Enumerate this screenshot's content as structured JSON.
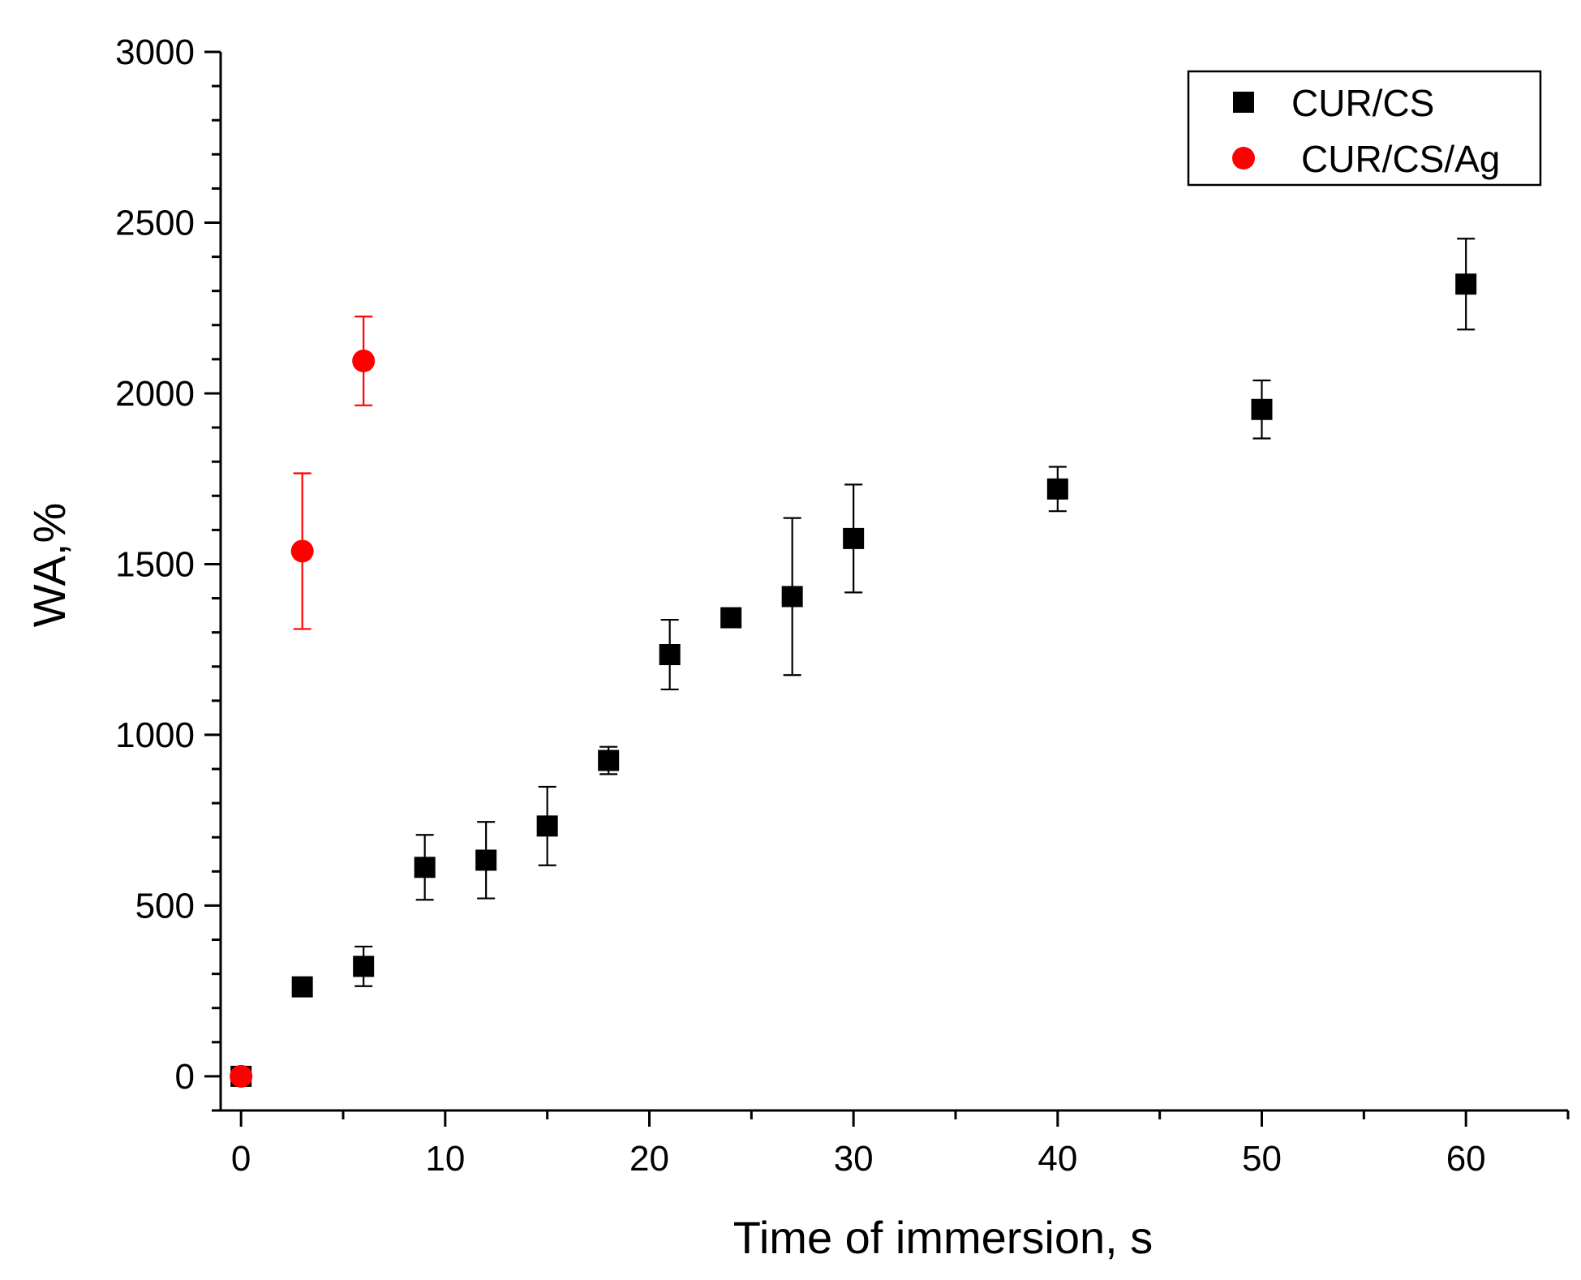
{
  "chart_data": {
    "type": "scatter",
    "xlabel": "Time of immersion, s",
    "ylabel": "WA,%",
    "xlim": [
      -1,
      65
    ],
    "ylim": [
      -100,
      3000
    ],
    "x_ticks": [
      0,
      10,
      20,
      30,
      40,
      50,
      60
    ],
    "x_tick_labels": [
      "0",
      "10",
      "20",
      "30",
      "40",
      "50",
      "60"
    ],
    "y_ticks": [
      0,
      500,
      1000,
      1500,
      2000,
      2500,
      3000
    ],
    "y_tick_labels": [
      "0",
      "500",
      "1000",
      "1500",
      "2000",
      "2500",
      "3000"
    ],
    "grid": false,
    "legend_position": "top-right",
    "series": [
      {
        "name": "CUR/CS",
        "marker": "square",
        "color": "#000000",
        "points": [
          {
            "x": 0,
            "y": 0,
            "err": 20
          },
          {
            "x": 3,
            "y": 262,
            "err": 15
          },
          {
            "x": 6,
            "y": 322,
            "err": 58
          },
          {
            "x": 9,
            "y": 612,
            "err": 95
          },
          {
            "x": 12,
            "y": 633,
            "err": 112
          },
          {
            "x": 15,
            "y": 733,
            "err": 115
          },
          {
            "x": 18,
            "y": 925,
            "err": 40
          },
          {
            "x": 21,
            "y": 1235,
            "err": 102
          },
          {
            "x": 24,
            "y": 1343,
            "err": 10
          },
          {
            "x": 27,
            "y": 1405,
            "err": 230
          },
          {
            "x": 30,
            "y": 1575,
            "err": 158
          },
          {
            "x": 40,
            "y": 1720,
            "err": 65
          },
          {
            "x": 50,
            "y": 1953,
            "err": 85
          },
          {
            "x": 60,
            "y": 2320,
            "err": 133
          }
        ]
      },
      {
        "name": "CUR/CS/Ag",
        "marker": "circle",
        "color": "#ff0000",
        "points": [
          {
            "x": 0,
            "y": 0,
            "err": 10
          },
          {
            "x": 3,
            "y": 1538,
            "err": 228
          },
          {
            "x": 6,
            "y": 2095,
            "err": 130
          }
        ]
      }
    ]
  }
}
